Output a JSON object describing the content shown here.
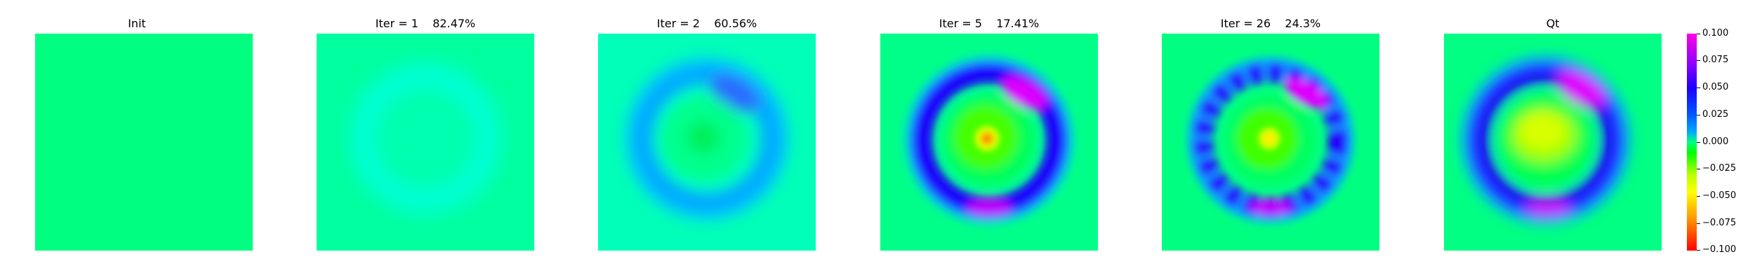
{
  "panels": [
    {
      "title": "Init"
    },
    {
      "title": "Iter = 1    82.47%"
    },
    {
      "title": "Iter = 2    60.56%"
    },
    {
      "title": "Iter = 5    17.41%"
    },
    {
      "title": "Iter = 26    24.3%"
    },
    {
      "title": "Qt"
    }
  ],
  "colorbar": {
    "ticks": [
      "0.100",
      "0.075",
      "0.050",
      "0.025",
      "0.000",
      "−0.025",
      "−0.050",
      "−0.075",
      "−0.100"
    ]
  },
  "colors": {
    "background_green": "#00ff7f",
    "ring_blue": "#1a00ff",
    "peak_magenta": "#e600ff"
  }
}
